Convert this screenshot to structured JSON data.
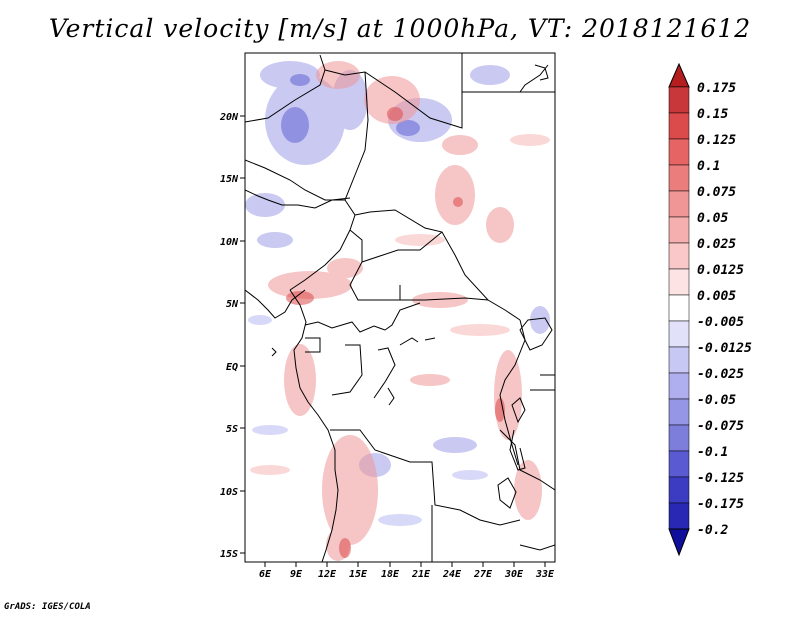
{
  "title": "Vertical velocity [m/s] at 1000hPa, VT: 2018121612",
  "footer": "GrADS: IGES/COLA",
  "map": {
    "lat_labels": [
      "20N",
      "15N",
      "10N",
      "5N",
      "EQ",
      "5S",
      "10S",
      "15S"
    ],
    "lon_labels": [
      "6E",
      "9E",
      "12E",
      "15E",
      "18E",
      "21E",
      "24E",
      "27E",
      "30E",
      "33E"
    ]
  },
  "colorbar": {
    "labels": [
      "0.175",
      "0.15",
      "0.125",
      "0.1",
      "0.075",
      "0.05",
      "0.025",
      "0.0125",
      "0.005",
      "-0.005",
      "-0.0125",
      "-0.025",
      "-0.05",
      "-0.075",
      "-0.1",
      "-0.125",
      "-0.175",
      "-0.2"
    ],
    "colors": [
      "#b41e1e",
      "#c8373a",
      "#dc4b4b",
      "#e66464",
      "#eb7d7d",
      "#f09696",
      "#f5afaf",
      "#fac8c8",
      "#fde3e3",
      "#ffffff",
      "#e1e1fa",
      "#c8c8f5",
      "#afafef",
      "#9696e6",
      "#7d7ddc",
      "#5a5ad2",
      "#3c3cc3",
      "#2828b4",
      "#0f0f9b"
    ]
  }
}
